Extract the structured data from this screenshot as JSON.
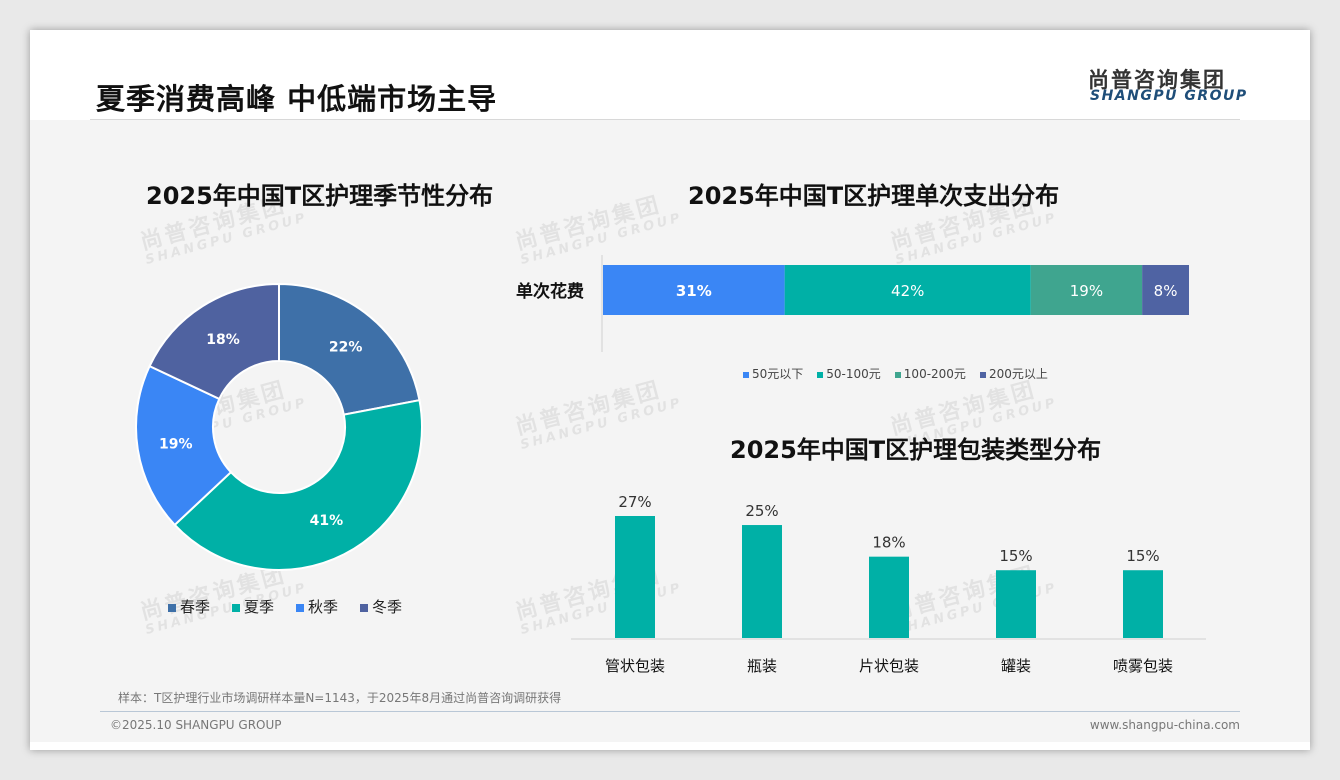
{
  "header": {
    "title": "夏季消费高峰 中低端市场主导",
    "logo_cn": "尚普咨询集团",
    "logo_en": "SHANGPU GROUP"
  },
  "watermark": {
    "cn": "尚普咨询集团",
    "en": "SHANGPU GROUP"
  },
  "footer": {
    "note": "样本：T区护理行业市场调研样本量N=1143，于2025年8月通过尚普咨询调研获得",
    "copyright": "©2025.10 SHANGPU GROUP",
    "url": "www.shangpu-china.com"
  },
  "chart_data": [
    {
      "type": "pie",
      "title": "2025年中国T区护理季节性分布",
      "categories": [
        "春季",
        "夏季",
        "秋季",
        "冬季"
      ],
      "values": [
        22,
        41,
        19,
        18
      ],
      "labels": [
        "22%",
        "41%",
        "19%",
        "18%"
      ],
      "colors": [
        "#3e70a8",
        "#00b0a6",
        "#3a86f5",
        "#4f62a0"
      ],
      "legend": "bottom"
    },
    {
      "type": "bar",
      "orientation": "horizontal-stacked",
      "title": "2025年中国T区护理单次支出分布",
      "categories": [
        "单次花费"
      ],
      "series": [
        {
          "name": "50元以下",
          "values": [
            31
          ],
          "label": "31%",
          "color": "#3a86f5"
        },
        {
          "name": "50-100元",
          "values": [
            42
          ],
          "label": "42%",
          "color": "#00b0a6"
        },
        {
          "name": "100-200元",
          "values": [
            19
          ],
          "label": "19%",
          "color": "#3fa58f"
        },
        {
          "name": "200元以上",
          "values": [
            8
          ],
          "label": "8%",
          "color": "#4f63a3"
        }
      ],
      "legend": "bottom"
    },
    {
      "type": "bar",
      "title": "2025年中国T区护理包装类型分布",
      "categories": [
        "管状包装",
        "瓶装",
        "片状包装",
        "罐装",
        "喷雾包装"
      ],
      "values": [
        27,
        25,
        18,
        15,
        15
      ],
      "labels": [
        "27%",
        "25%",
        "18%",
        "15%",
        "15%"
      ],
      "color": "#00b0a6",
      "ylim": [
        0,
        30
      ]
    }
  ]
}
